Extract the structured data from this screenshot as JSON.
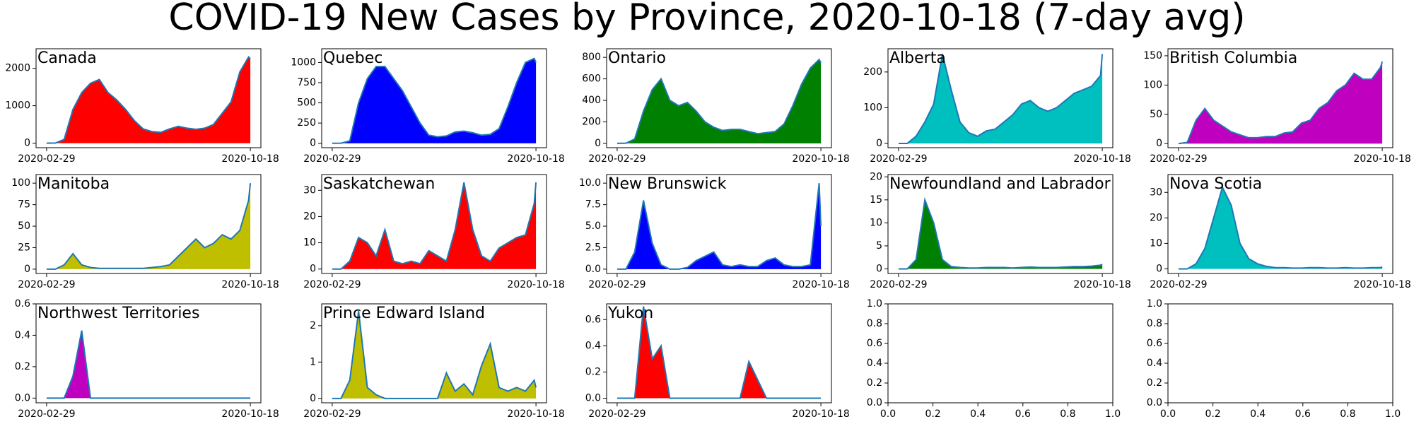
{
  "title": "COVID-19 New Cases by Province, 2020-10-18 (7-day avg)",
  "chart_data": [
    {
      "type": "area",
      "title": "Canada",
      "color": "#ff0000",
      "line_color": "#1f77b4",
      "x": [
        "2020-02-29",
        "2020-03-10",
        "2020-03-20",
        "2020-03-30",
        "2020-04-09",
        "2020-04-19",
        "2020-04-29",
        "2020-05-09",
        "2020-05-19",
        "2020-05-29",
        "2020-06-08",
        "2020-06-18",
        "2020-06-28",
        "2020-07-08",
        "2020-07-18",
        "2020-07-28",
        "2020-08-07",
        "2020-08-17",
        "2020-08-27",
        "2020-09-06",
        "2020-09-16",
        "2020-09-26",
        "2020-10-06",
        "2020-10-16",
        "2020-10-18"
      ],
      "values": [
        0,
        5,
        100,
        900,
        1350,
        1600,
        1700,
        1350,
        1150,
        900,
        600,
        380,
        310,
        290,
        380,
        450,
        400,
        370,
        400,
        500,
        800,
        1100,
        1900,
        2300,
        2250
      ],
      "xlim": [
        "2020-02-17",
        "2020-10-30"
      ],
      "xticks": [
        "2020-02-29",
        "2020-10-18"
      ],
      "ylim": [
        -120,
        2520
      ],
      "yticks": [
        0,
        1000,
        2000
      ]
    },
    {
      "type": "area",
      "title": "Quebec",
      "color": "#0000ff",
      "line_color": "#1f77b4",
      "x": [
        "2020-02-29",
        "2020-03-10",
        "2020-03-20",
        "2020-03-30",
        "2020-04-09",
        "2020-04-19",
        "2020-04-29",
        "2020-05-09",
        "2020-05-19",
        "2020-05-29",
        "2020-06-08",
        "2020-06-18",
        "2020-06-28",
        "2020-07-08",
        "2020-07-18",
        "2020-07-28",
        "2020-08-07",
        "2020-08-17",
        "2020-08-27",
        "2020-09-06",
        "2020-09-16",
        "2020-09-26",
        "2020-10-06",
        "2020-10-16",
        "2020-10-18"
      ],
      "values": [
        0,
        1,
        30,
        500,
        800,
        950,
        950,
        800,
        650,
        450,
        250,
        100,
        80,
        90,
        140,
        150,
        130,
        100,
        110,
        180,
        450,
        750,
        1000,
        1050,
        1000
      ],
      "xlim": [
        "2020-02-17",
        "2020-10-30"
      ],
      "xticks": [
        "2020-02-29",
        "2020-10-18"
      ],
      "ylim": [
        -55,
        1170
      ],
      "yticks": [
        0,
        250,
        500,
        750,
        1000
      ]
    },
    {
      "type": "area",
      "title": "Ontario",
      "color": "#008000",
      "line_color": "#1f77b4",
      "x": [
        "2020-02-29",
        "2020-03-10",
        "2020-03-20",
        "2020-03-30",
        "2020-04-09",
        "2020-04-19",
        "2020-04-29",
        "2020-05-09",
        "2020-05-19",
        "2020-05-29",
        "2020-06-08",
        "2020-06-18",
        "2020-06-28",
        "2020-07-08",
        "2020-07-18",
        "2020-07-28",
        "2020-08-07",
        "2020-08-17",
        "2020-08-27",
        "2020-09-06",
        "2020-09-16",
        "2020-09-26",
        "2020-10-06",
        "2020-10-16",
        "2020-10-18"
      ],
      "values": [
        0,
        2,
        40,
        300,
        500,
        600,
        400,
        350,
        380,
        300,
        200,
        150,
        120,
        130,
        130,
        110,
        90,
        100,
        110,
        180,
        350,
        550,
        700,
        780,
        750
      ],
      "xlim": [
        "2020-02-17",
        "2020-10-30"
      ],
      "xticks": [
        "2020-02-29",
        "2020-10-18"
      ],
      "ylim": [
        -40,
        880
      ],
      "yticks": [
        0,
        200,
        400,
        600,
        800
      ]
    },
    {
      "type": "area",
      "title": "Alberta",
      "color": "#00bfbf",
      "line_color": "#1f77b4",
      "x": [
        "2020-02-29",
        "2020-03-10",
        "2020-03-20",
        "2020-03-30",
        "2020-04-09",
        "2020-04-19",
        "2020-04-29",
        "2020-05-09",
        "2020-05-19",
        "2020-05-29",
        "2020-06-08",
        "2020-06-18",
        "2020-06-28",
        "2020-07-08",
        "2020-07-18",
        "2020-07-28",
        "2020-08-07",
        "2020-08-17",
        "2020-08-27",
        "2020-09-06",
        "2020-09-16",
        "2020-09-26",
        "2020-10-06",
        "2020-10-16",
        "2020-10-18"
      ],
      "values": [
        0,
        0,
        20,
        60,
        110,
        250,
        150,
        60,
        30,
        20,
        35,
        40,
        60,
        80,
        110,
        120,
        100,
        90,
        100,
        120,
        140,
        150,
        160,
        190,
        250
      ],
      "xlim": [
        "2020-02-17",
        "2020-10-30"
      ],
      "xticks": [
        "2020-02-29",
        "2020-10-18"
      ],
      "ylim": [
        -12,
        265
      ],
      "yticks": [
        0,
        100,
        200
      ]
    },
    {
      "type": "area",
      "title": "British Columbia",
      "color": "#bf00bf",
      "line_color": "#1f77b4",
      "x": [
        "2020-02-29",
        "2020-03-10",
        "2020-03-20",
        "2020-03-30",
        "2020-04-09",
        "2020-04-19",
        "2020-04-29",
        "2020-05-09",
        "2020-05-19",
        "2020-05-29",
        "2020-06-08",
        "2020-06-18",
        "2020-06-28",
        "2020-07-08",
        "2020-07-18",
        "2020-07-28",
        "2020-08-07",
        "2020-08-17",
        "2020-08-27",
        "2020-09-06",
        "2020-09-16",
        "2020-09-26",
        "2020-10-06",
        "2020-10-16",
        "2020-10-18"
      ],
      "values": [
        0,
        2,
        40,
        60,
        40,
        30,
        20,
        15,
        10,
        10,
        12,
        12,
        18,
        20,
        35,
        40,
        60,
        70,
        90,
        100,
        120,
        110,
        110,
        130,
        140
      ],
      "xlim": [
        "2020-02-17",
        "2020-10-30"
      ],
      "xticks": [
        "2020-02-29",
        "2020-10-18"
      ],
      "ylim": [
        -7,
        162
      ],
      "yticks": [
        0,
        50,
        100,
        150
      ]
    },
    {
      "type": "area",
      "title": "Manitoba",
      "color": "#bfbf00",
      "line_color": "#1f77b4",
      "x": [
        "2020-02-29",
        "2020-03-10",
        "2020-03-20",
        "2020-03-30",
        "2020-04-09",
        "2020-04-19",
        "2020-04-29",
        "2020-05-09",
        "2020-05-19",
        "2020-05-29",
        "2020-06-08",
        "2020-06-18",
        "2020-06-28",
        "2020-07-08",
        "2020-07-18",
        "2020-07-28",
        "2020-08-07",
        "2020-08-17",
        "2020-08-27",
        "2020-09-06",
        "2020-09-16",
        "2020-09-26",
        "2020-10-06",
        "2020-10-16",
        "2020-10-18"
      ],
      "values": [
        0,
        0,
        5,
        18,
        5,
        2,
        1,
        1,
        1,
        1,
        1,
        1,
        2,
        3,
        5,
        15,
        25,
        35,
        25,
        30,
        40,
        35,
        45,
        80,
        100
      ],
      "xlim": [
        "2020-02-17",
        "2020-10-30"
      ],
      "xticks": [
        "2020-02-29",
        "2020-10-18"
      ],
      "ylim": [
        -5,
        110
      ],
      "yticks": [
        0,
        25,
        50,
        75,
        100
      ]
    },
    {
      "type": "area",
      "title": "Saskatchewan",
      "color": "#ff0000",
      "line_color": "#1f77b4",
      "x": [
        "2020-02-29",
        "2020-03-10",
        "2020-03-20",
        "2020-03-30",
        "2020-04-09",
        "2020-04-19",
        "2020-04-29",
        "2020-05-09",
        "2020-05-19",
        "2020-05-29",
        "2020-06-08",
        "2020-06-18",
        "2020-06-28",
        "2020-07-08",
        "2020-07-18",
        "2020-07-28",
        "2020-08-07",
        "2020-08-17",
        "2020-08-27",
        "2020-09-06",
        "2020-09-16",
        "2020-09-26",
        "2020-10-06",
        "2020-10-16",
        "2020-10-18"
      ],
      "values": [
        0,
        0,
        3,
        12,
        10,
        5,
        15,
        3,
        2,
        3,
        2,
        7,
        5,
        3,
        15,
        33,
        15,
        5,
        3,
        8,
        10,
        12,
        13,
        25,
        33
      ],
      "xlim": [
        "2020-02-17",
        "2020-10-30"
      ],
      "xticks": [
        "2020-02-29",
        "2020-10-18"
      ],
      "ylim": [
        -1.7,
        36
      ],
      "yticks": [
        0,
        10,
        20,
        30
      ]
    },
    {
      "type": "area",
      "title": "New Brunswick",
      "color": "#0000ff",
      "line_color": "#1f77b4",
      "x": [
        "2020-02-29",
        "2020-03-10",
        "2020-03-20",
        "2020-03-30",
        "2020-04-09",
        "2020-04-19",
        "2020-04-29",
        "2020-05-09",
        "2020-05-19",
        "2020-05-29",
        "2020-06-08",
        "2020-06-18",
        "2020-06-28",
        "2020-07-08",
        "2020-07-18",
        "2020-07-28",
        "2020-08-07",
        "2020-08-17",
        "2020-08-27",
        "2020-09-06",
        "2020-09-16",
        "2020-09-26",
        "2020-10-06",
        "2020-10-16",
        "2020-10-18"
      ],
      "values": [
        0,
        0,
        2,
        8,
        3,
        0.5,
        0,
        0,
        0.2,
        1,
        1.5,
        2,
        0.5,
        0.3,
        0.5,
        0.3,
        0.3,
        1,
        1.3,
        0.5,
        0.3,
        0.3,
        0.5,
        10,
        5
      ],
      "xlim": [
        "2020-02-17",
        "2020-10-30"
      ],
      "xticks": [
        "2020-02-29",
        "2020-10-18"
      ],
      "ylim": [
        -0.5,
        11
      ],
      "yticks": [
        {
          "value": 0,
          "label": "0.0"
        },
        2.5,
        {
          "value": 5,
          "label": "5.0"
        },
        7.5,
        {
          "value": 10,
          "label": "10.0"
        }
      ]
    },
    {
      "type": "area",
      "title": "Newfoundland and Labrador",
      "color": "#008000",
      "line_color": "#1f77b4",
      "x": [
        "2020-02-29",
        "2020-03-10",
        "2020-03-20",
        "2020-03-30",
        "2020-04-09",
        "2020-04-19",
        "2020-04-29",
        "2020-05-09",
        "2020-05-19",
        "2020-05-29",
        "2020-06-08",
        "2020-06-18",
        "2020-06-28",
        "2020-07-08",
        "2020-07-18",
        "2020-07-28",
        "2020-08-07",
        "2020-08-17",
        "2020-08-27",
        "2020-09-06",
        "2020-09-16",
        "2020-09-26",
        "2020-10-06",
        "2020-10-16",
        "2020-10-18"
      ],
      "values": [
        0,
        0,
        2,
        15,
        10,
        2,
        0.5,
        0.3,
        0.2,
        0.2,
        0.3,
        0.3,
        0.3,
        0.2,
        0.3,
        0.4,
        0.3,
        0.3,
        0.3,
        0.4,
        0.5,
        0.5,
        0.6,
        0.8,
        1
      ],
      "xlim": [
        "2020-02-17",
        "2020-10-30"
      ],
      "xticks": [
        "2020-02-29",
        "2020-10-18"
      ],
      "ylim": [
        -1,
        20.5
      ],
      "yticks": [
        0,
        5,
        10,
        15,
        20
      ]
    },
    {
      "type": "area",
      "title": "Nova Scotia",
      "color": "#00bfbf",
      "line_color": "#1f77b4",
      "x": [
        "2020-02-29",
        "2020-03-10",
        "2020-03-20",
        "2020-03-30",
        "2020-04-09",
        "2020-04-19",
        "2020-04-29",
        "2020-05-09",
        "2020-05-19",
        "2020-05-29",
        "2020-06-08",
        "2020-06-18",
        "2020-06-28",
        "2020-07-08",
        "2020-07-18",
        "2020-07-28",
        "2020-08-07",
        "2020-08-17",
        "2020-08-27",
        "2020-09-06",
        "2020-09-16",
        "2020-09-26",
        "2020-10-06",
        "2020-10-16",
        "2020-10-18"
      ],
      "values": [
        0,
        0,
        2,
        8,
        20,
        32,
        25,
        10,
        4,
        2,
        1,
        0.5,
        0.5,
        0.3,
        0.3,
        0.5,
        0.5,
        0.3,
        0.3,
        0.5,
        0.3,
        0.3,
        0.5,
        0.5,
        0.8
      ],
      "xlim": [
        "2020-02-17",
        "2020-10-30"
      ],
      "xticks": [
        "2020-02-29",
        "2020-10-18"
      ],
      "ylim": [
        -1.8,
        37
      ],
      "yticks": [
        0,
        10,
        20,
        30
      ]
    },
    {
      "type": "area",
      "title": "Northwest Territories",
      "color": "#bf00bf",
      "line_color": "#1f77b4",
      "x": [
        "2020-02-29",
        "2020-03-10",
        "2020-03-20",
        "2020-03-30",
        "2020-04-09",
        "2020-04-19",
        "2020-04-29",
        "2020-05-09",
        "2020-05-19",
        "2020-05-29",
        "2020-06-08",
        "2020-06-18",
        "2020-06-28",
        "2020-07-08",
        "2020-07-18",
        "2020-07-28",
        "2020-08-07",
        "2020-08-17",
        "2020-08-27",
        "2020-09-06",
        "2020-09-16",
        "2020-09-26",
        "2020-10-06",
        "2020-10-16",
        "2020-10-18"
      ],
      "values": [
        0,
        0,
        0,
        0.14,
        0.43,
        0,
        0,
        0,
        0,
        0,
        0,
        0,
        0,
        0,
        0,
        0,
        0,
        0,
        0,
        0,
        0,
        0,
        0,
        0,
        0
      ],
      "xlim": [
        "2020-02-17",
        "2020-10-30"
      ],
      "xticks": [
        "2020-02-29",
        "2020-10-18"
      ],
      "ylim": [
        -0.03,
        0.6
      ],
      "yticks": [
        {
          "value": 0,
          "label": "0.0"
        },
        0.2,
        0.4,
        0.6
      ]
    },
    {
      "type": "area",
      "title": "Prince Edward Island",
      "color": "#bfbf00",
      "line_color": "#1f77b4",
      "x": [
        "2020-02-29",
        "2020-03-10",
        "2020-03-20",
        "2020-03-30",
        "2020-04-09",
        "2020-04-19",
        "2020-04-29",
        "2020-05-09",
        "2020-05-19",
        "2020-05-29",
        "2020-06-08",
        "2020-06-18",
        "2020-06-28",
        "2020-07-08",
        "2020-07-18",
        "2020-07-28",
        "2020-08-07",
        "2020-08-17",
        "2020-08-27",
        "2020-09-06",
        "2020-09-16",
        "2020-09-26",
        "2020-10-06",
        "2020-10-16",
        "2020-10-18"
      ],
      "values": [
        0,
        0,
        0.5,
        2.4,
        0.3,
        0.1,
        0,
        0,
        0,
        0,
        0,
        0,
        0,
        0.7,
        0.2,
        0.4,
        0.1,
        0.9,
        1.5,
        0.3,
        0.2,
        0.3,
        0.2,
        0.5,
        0.3
      ],
      "xlim": [
        "2020-02-17",
        "2020-10-30"
      ],
      "xticks": [
        "2020-02-29",
        "2020-10-18"
      ],
      "ylim": [
        -0.12,
        2.6
      ],
      "yticks": [
        0,
        1,
        2
      ]
    },
    {
      "type": "area",
      "title": "Yukon",
      "color": "#ff0000",
      "line_color": "#1f77b4",
      "x": [
        "2020-02-29",
        "2020-03-10",
        "2020-03-20",
        "2020-03-30",
        "2020-04-09",
        "2020-04-19",
        "2020-04-29",
        "2020-05-09",
        "2020-05-19",
        "2020-05-29",
        "2020-06-08",
        "2020-06-18",
        "2020-06-28",
        "2020-07-08",
        "2020-07-18",
        "2020-07-28",
        "2020-08-07",
        "2020-08-17",
        "2020-08-27",
        "2020-09-06",
        "2020-09-16",
        "2020-09-26",
        "2020-10-06",
        "2020-10-16",
        "2020-10-18"
      ],
      "values": [
        0,
        0,
        0,
        0.7,
        0.3,
        0.4,
        0,
        0,
        0,
        0,
        0,
        0,
        0,
        0,
        0,
        0.28,
        0.14,
        0,
        0,
        0,
        0,
        0,
        0,
        0,
        0
      ],
      "xlim": [
        "2020-02-17",
        "2020-10-30"
      ],
      "xticks": [
        "2020-02-29",
        "2020-10-18"
      ],
      "ylim": [
        -0.035,
        0.72
      ],
      "yticks": [
        {
          "value": 0,
          "label": "0.0"
        },
        0.2,
        0.4,
        0.6
      ]
    },
    {
      "type": "empty",
      "xlim": [
        0,
        1
      ],
      "ylim": [
        0,
        1
      ],
      "xticks": [
        {
          "value": 0,
          "label": "0.0"
        },
        0.2,
        0.4,
        0.6,
        0.8,
        {
          "value": 1,
          "label": "1.0"
        }
      ],
      "yticks": [
        {
          "value": 0,
          "label": "0.0"
        },
        0.2,
        0.4,
        0.6,
        0.8,
        {
          "value": 1,
          "label": "1.0"
        }
      ]
    },
    {
      "type": "empty",
      "xlim": [
        0,
        1
      ],
      "ylim": [
        0,
        1
      ],
      "xticks": [
        {
          "value": 0,
          "label": "0.0"
        },
        0.2,
        0.4,
        0.6,
        0.8,
        {
          "value": 1,
          "label": "1.0"
        }
      ],
      "yticks": [
        {
          "value": 0,
          "label": "0.0"
        },
        0.2,
        0.4,
        0.6,
        0.8,
        {
          "value": 1,
          "label": "1.0"
        }
      ]
    }
  ]
}
